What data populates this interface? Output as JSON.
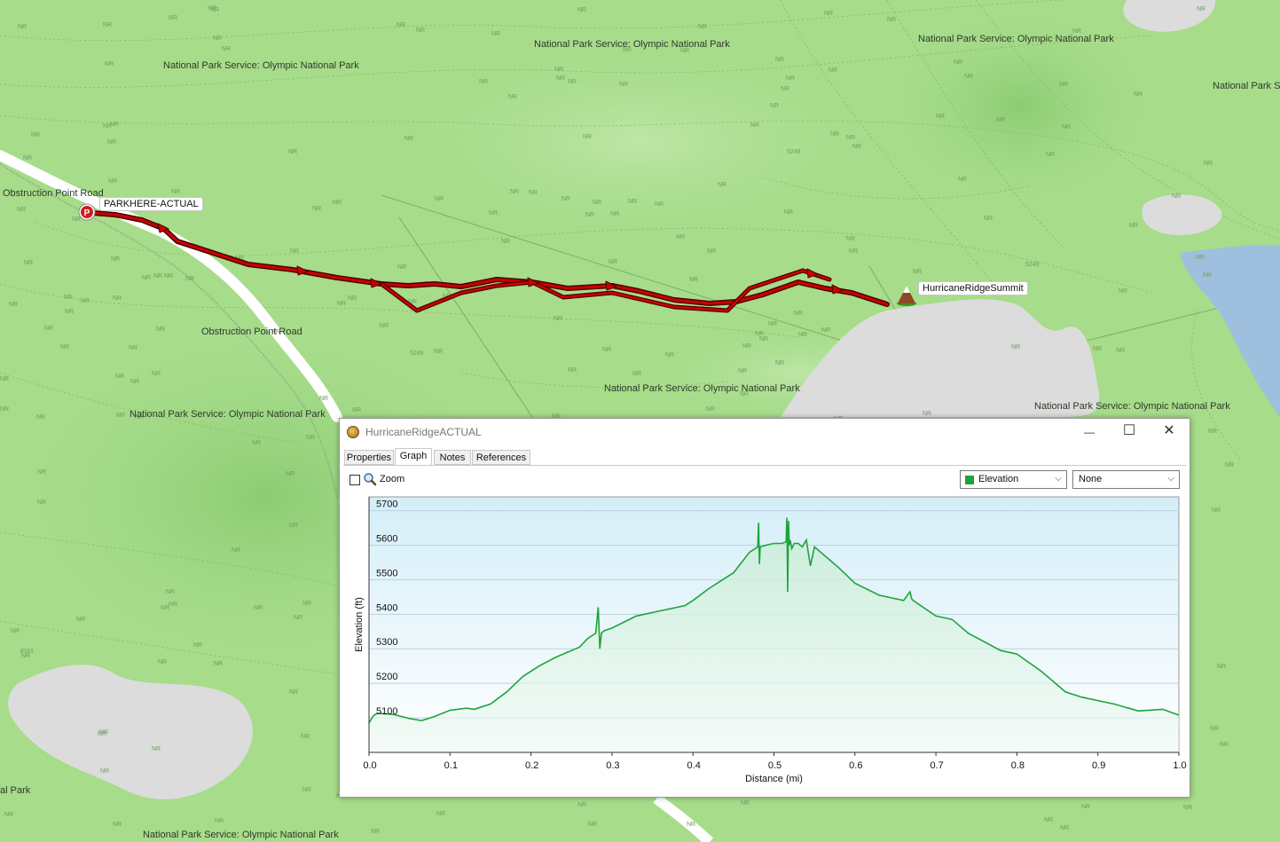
{
  "map": {
    "area_labels": [
      "National Park Service: Olympic National Park",
      "National Park Service: Olympic National Park",
      "National Park Service: Olympic National Park",
      "National Park Service: Olympic National Park",
      "National Park Service: Olympic National Park",
      "National Park Service: Olympic National Park",
      "National Park Service: Olympic National Park",
      "National Park S",
      "al Park"
    ],
    "road_labels": [
      "Obstruction Point Road",
      "Obstruction Point Road"
    ],
    "elevation_labels": [
      "5249",
      "5249",
      "5249",
      "4593"
    ],
    "nr_mark": "NR",
    "parking_icon_letter": "P",
    "start_waypoint": "PARKHERE-ACTUAL",
    "summit_waypoint": "HurricaneRidgeSummit",
    "track_color": "#cc0000"
  },
  "window": {
    "title": "HurricaneRidgeACTUAL",
    "buttons": {
      "minimize": "—",
      "maximize": "☐",
      "close": "✕"
    },
    "tabs": [
      "Properties",
      "Graph",
      "Notes",
      "References"
    ],
    "active_tab": "Graph",
    "zoom_label": "Zoom",
    "zoom_checked": false,
    "primary_select": "Elevation",
    "secondary_select": "None",
    "series_color": "#1fa33c"
  },
  "chart_data": {
    "type": "area",
    "xlabel": "Distance  (mi)",
    "ylabel": "Elevation (ft)",
    "xlim": [
      0,
      1.0
    ],
    "ylim": [
      5000,
      5740
    ],
    "xticks": [
      "0.0",
      "0.1",
      "0.2",
      "0.3",
      "0.4",
      "0.5",
      "0.6",
      "0.7",
      "0.8",
      "0.9",
      "1.0"
    ],
    "yticks": [
      "5100",
      "5200",
      "5300",
      "5400",
      "5500",
      "5600",
      "5700"
    ],
    "grid": true,
    "series": [
      {
        "x": [
          0.0,
          0.005,
          0.01,
          0.03,
          0.05,
          0.065,
          0.08,
          0.1,
          0.12,
          0.13,
          0.15,
          0.17,
          0.19,
          0.21,
          0.23,
          0.25,
          0.26,
          0.27,
          0.28,
          0.283,
          0.285,
          0.287,
          0.29,
          0.3,
          0.33,
          0.36,
          0.39,
          0.4,
          0.42,
          0.45,
          0.47,
          0.48,
          0.481,
          0.482,
          0.483,
          0.49,
          0.5,
          0.51,
          0.515,
          0.516,
          0.517,
          0.518,
          0.519,
          0.52,
          0.522,
          0.525,
          0.53,
          0.535,
          0.54,
          0.545,
          0.55,
          0.58,
          0.6,
          0.63,
          0.66,
          0.668,
          0.67,
          0.672,
          0.7,
          0.72,
          0.74,
          0.78,
          0.8,
          0.83,
          0.86,
          0.88,
          0.92,
          0.95,
          0.98,
          1.0
        ],
        "y": [
          5085,
          5105,
          5113,
          5110,
          5098,
          5092,
          5103,
          5122,
          5128,
          5125,
          5140,
          5175,
          5220,
          5250,
          5275,
          5295,
          5305,
          5330,
          5345,
          5420,
          5300,
          5345,
          5352,
          5360,
          5395,
          5410,
          5425,
          5440,
          5475,
          5520,
          5580,
          5595,
          5665,
          5545,
          5595,
          5600,
          5605,
          5605,
          5610,
          5680,
          5465,
          5670,
          5600,
          5615,
          5590,
          5605,
          5605,
          5595,
          5615,
          5540,
          5595,
          5535,
          5490,
          5455,
          5440,
          5465,
          5445,
          5440,
          5395,
          5385,
          5345,
          5295,
          5285,
          5235,
          5175,
          5160,
          5140,
          5120,
          5125,
          5108
        ]
      }
    ]
  }
}
